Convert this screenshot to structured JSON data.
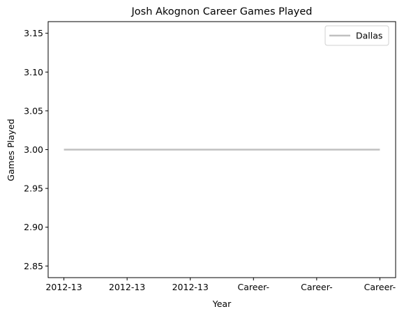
{
  "chart_data": {
    "type": "line",
    "title": "Josh Akognon Career Games Played",
    "xlabel": "Year",
    "ylabel": "Games Played",
    "categories": [
      "2012-13",
      "2012-13",
      "2012-13",
      "Career-",
      "Career-",
      "Career-"
    ],
    "series": [
      {
        "name": "Dallas",
        "values": [
          3,
          3,
          3,
          3,
          3,
          3
        ],
        "color": "#c0c0c0"
      }
    ],
    "ylim": [
      2.835,
      3.165
    ],
    "yticks": [
      "2.85",
      "2.90",
      "2.95",
      "3.00",
      "3.05",
      "3.10",
      "3.15"
    ],
    "grid": false,
    "legend_position": "top-right"
  }
}
